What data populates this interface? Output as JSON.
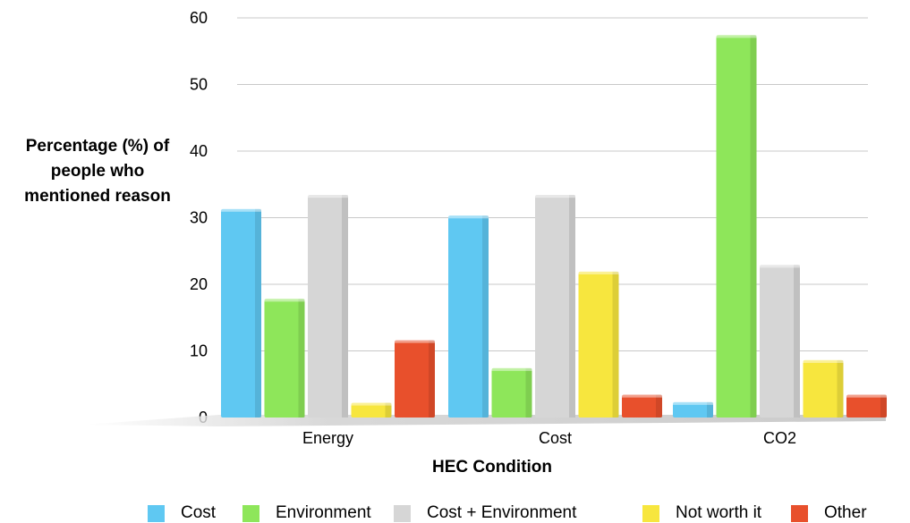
{
  "chart_data": {
    "type": "bar",
    "title": "",
    "xlabel": "HEC Condition",
    "ylabel": "Percentage (%) of people who mentioned reason",
    "categories": [
      "Energy",
      "Cost",
      "CO2"
    ],
    "ylim": [
      0,
      60
    ],
    "yticks": [
      0,
      10,
      20,
      30,
      40,
      50,
      60
    ],
    "grid": true,
    "legend_position": "bottom",
    "series": [
      {
        "name": "Cost",
        "color": "#5fc8f2",
        "values": [
          31.3,
          30.3,
          2.3
        ]
      },
      {
        "name": "Environment",
        "color": "#8ee65a",
        "values": [
          17.8,
          7.4,
          57.4
        ]
      },
      {
        "name": "Cost + Environment",
        "color": "#d6d6d6",
        "values": [
          33.4,
          33.4,
          22.9
        ]
      },
      {
        "name": "Not worth it",
        "color": "#f7e63e",
        "values": [
          2.2,
          21.9,
          8.6
        ]
      },
      {
        "name": "Other",
        "color": "#e8502c",
        "values": [
          11.6,
          3.4,
          3.4
        ]
      }
    ]
  }
}
